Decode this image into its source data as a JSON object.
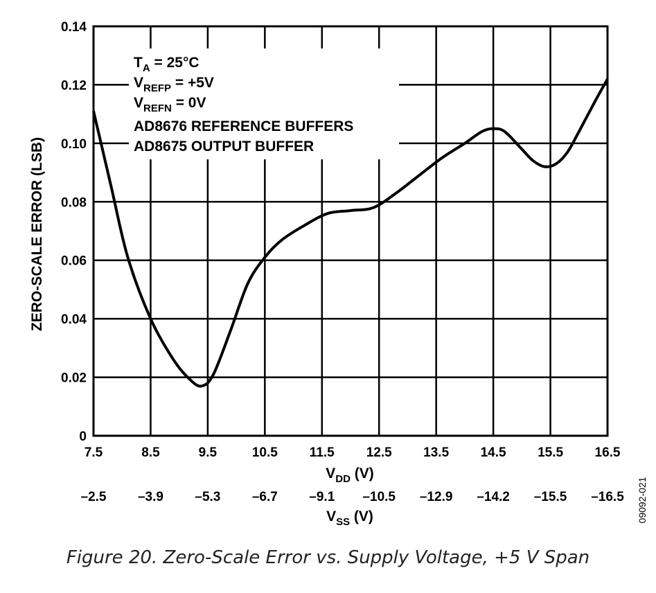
{
  "chart_data": {
    "type": "line",
    "ylabel": "ZERO-SCALE ERROR (LSB)",
    "xlabel_main": "V",
    "xlabel_main_sub": "DD",
    "xlabel_main_unit": " (V)",
    "xlabel_second": "V",
    "xlabel_second_sub": "SS",
    "xlabel_second_unit": " (V)",
    "x_ticks": [
      "7.5",
      "8.5",
      "9.5",
      "10.5",
      "11.5",
      "12.5",
      "13.5",
      "14.5",
      "15.5",
      "16.5"
    ],
    "x_second_ticks": [
      "–2.5",
      "–3.9",
      "–5.3",
      "–6.7",
      "–9.1",
      "–10.5",
      "–12.9",
      "–14.2",
      "–15.5",
      "–16.5"
    ],
    "y_ticks": [
      "0",
      "0.02",
      "0.04",
      "0.06",
      "0.08",
      "0.10",
      "0.12",
      "0.14"
    ],
    "xlim": [
      7.5,
      16.5
    ],
    "ylim": [
      0,
      0.14
    ],
    "grid": true,
    "series": [
      {
        "x": [
          7.5,
          7.8,
          8.1,
          8.5,
          8.9,
          9.2,
          9.4,
          9.6,
          9.9,
          10.2,
          10.5,
          10.8,
          11.2,
          11.6,
          12.0,
          12.4,
          12.8,
          13.2,
          13.6,
          14.0,
          14.3,
          14.5,
          14.7,
          15.0,
          15.2,
          15.4,
          15.6,
          15.8,
          16.0,
          16.3,
          16.5
        ],
        "y": [
          0.111,
          0.086,
          0.061,
          0.04,
          0.026,
          0.019,
          0.017,
          0.021,
          0.036,
          0.052,
          0.061,
          0.067,
          0.072,
          0.076,
          0.077,
          0.078,
          0.083,
          0.089,
          0.095,
          0.1,
          0.104,
          0.105,
          0.104,
          0.098,
          0.094,
          0.092,
          0.093,
          0.097,
          0.104,
          0.115,
          0.122
        ]
      }
    ]
  },
  "annotation": {
    "line1_main": "T",
    "line1_sub": "A",
    "line1_rest": " = 25°C",
    "line2_main": "V",
    "line2_sub": "REFP",
    "line2_rest": " = +5V",
    "line3_main": "V",
    "line3_sub": "REFN",
    "line3_rest": " = 0V",
    "line4": "AD8676 REFERENCE BUFFERS",
    "line5": "AD8675 OUTPUT BUFFER"
  },
  "figure_id": "09092-021",
  "caption": "Figure 20. Zero-Scale Error vs. Supply Voltage, +5 V Span"
}
